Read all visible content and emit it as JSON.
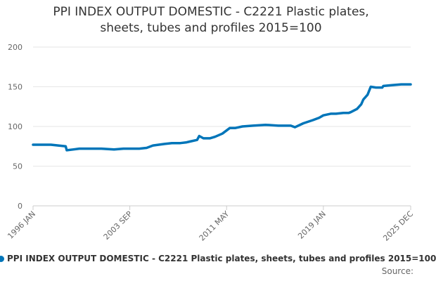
{
  "chart_data": {
    "type": "line",
    "title_lines": [
      "PPI INDEX OUTPUT DOMESTIC - C2221 Plastic plates,",
      "sheets, tubes and profiles 2015=100"
    ],
    "xlabel": "",
    "ylabel": "",
    "ylim": [
      0,
      200
    ],
    "yticks": [
      0,
      50,
      100,
      150,
      200
    ],
    "xlim": [
      "1996-01",
      "2025-12"
    ],
    "xtick_labels": [
      "1996 JAN",
      "2003 SEP",
      "2011 MAY",
      "2019 JAN",
      "2025 DEC"
    ],
    "xtick_dates": [
      "1996-01",
      "2003-09",
      "2011-05",
      "2019-01",
      "2025-12"
    ],
    "grid": true,
    "legend_position": "bottom",
    "series": [
      {
        "name": "PPI INDEX OUTPUT DOMESTIC - C2221 Plastic plates, sheets, tubes and profiles 2015=100",
        "color": "#0075b9",
        "x": [
          "1996-01",
          "1996-08",
          "1997-06",
          "1998-08",
          "1998-09",
          "1999-03",
          "1999-09",
          "2000-06",
          "2001-06",
          "2002-06",
          "2003-03",
          "2003-09",
          "2004-06",
          "2005-01",
          "2005-07",
          "2006-06",
          "2007-01",
          "2007-09",
          "2008-03",
          "2008-06",
          "2009-01",
          "2009-03",
          "2009-07",
          "2010-01",
          "2010-06",
          "2011-01",
          "2011-04",
          "2011-08",
          "2012-01",
          "2012-08",
          "2013-06",
          "2014-06",
          "2015-06",
          "2016-06",
          "2016-10",
          "2017-06",
          "2018-03",
          "2018-09",
          "2019-01",
          "2019-08",
          "2020-01",
          "2020-08",
          "2021-01",
          "2021-03",
          "2021-09",
          "2022-01",
          "2022-03",
          "2022-07",
          "2022-10",
          "2023-03",
          "2023-09",
          "2023-10",
          "2024-06",
          "2025-03",
          "2025-12"
        ],
        "values": [
          77,
          77,
          77,
          75,
          70,
          71,
          72,
          72,
          72,
          71,
          72,
          72,
          72,
          73,
          76,
          78,
          79,
          79,
          80,
          81,
          83,
          88,
          85,
          85,
          87,
          91,
          94,
          98,
          98,
          100,
          101,
          102,
          101,
          101,
          99,
          104,
          108,
          111,
          114,
          116,
          116,
          117,
          117,
          118,
          122,
          128,
          134,
          140,
          150,
          149,
          149,
          151,
          152,
          153,
          153
        ]
      }
    ]
  },
  "source_label": "Source:"
}
